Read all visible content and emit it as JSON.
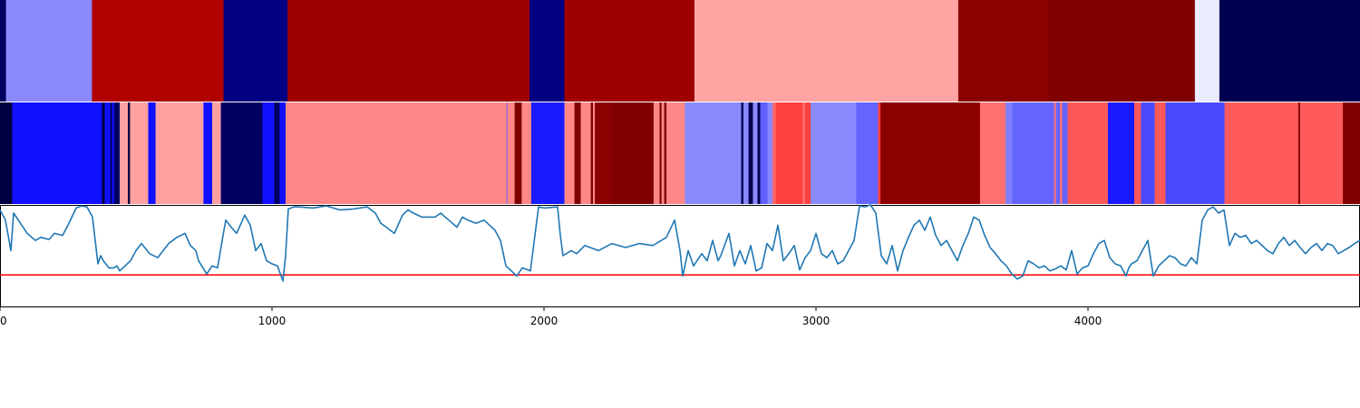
{
  "chart_data": [
    {
      "type": "heatmap",
      "panel": "top-segment-band",
      "xlim": [
        0,
        5000
      ],
      "segments": [
        {
          "start": 0,
          "end": 22,
          "color": "#000060"
        },
        {
          "start": 22,
          "end": 338,
          "color": "#8a8aff"
        },
        {
          "start": 338,
          "end": 822,
          "color": "#b10000"
        },
        {
          "start": 822,
          "end": 1057,
          "color": "#000080"
        },
        {
          "start": 1057,
          "end": 1947,
          "color": "#9f0000"
        },
        {
          "start": 1947,
          "end": 2075,
          "color": "#000080"
        },
        {
          "start": 2075,
          "end": 2553,
          "color": "#9f0000"
        },
        {
          "start": 2553,
          "end": 3523,
          "color": "#ffa3a3"
        },
        {
          "start": 3523,
          "end": 3853,
          "color": "#8b0000"
        },
        {
          "start": 3853,
          "end": 4393,
          "color": "#800000"
        },
        {
          "start": 4393,
          "end": 4483,
          "color": "#ececff"
        },
        {
          "start": 4483,
          "end": 5000,
          "color": "#000050"
        }
      ]
    },
    {
      "type": "heatmap",
      "panel": "middle-segment-band",
      "xlim": [
        0,
        5000
      ],
      "segments": [
        {
          "start": 0,
          "end": 45,
          "color": "#000040"
        },
        {
          "start": 45,
          "end": 375,
          "color": "#1010ff"
        },
        {
          "start": 375,
          "end": 385,
          "color": "#000040"
        },
        {
          "start": 385,
          "end": 405,
          "color": "#1010ff"
        },
        {
          "start": 405,
          "end": 412,
          "color": "#000060"
        },
        {
          "start": 412,
          "end": 420,
          "color": "#1010ff"
        },
        {
          "start": 420,
          "end": 440,
          "color": "#000060"
        },
        {
          "start": 440,
          "end": 470,
          "color": "#ffa0a0"
        },
        {
          "start": 470,
          "end": 478,
          "color": "#000040"
        },
        {
          "start": 478,
          "end": 545,
          "color": "#ffa0a0"
        },
        {
          "start": 545,
          "end": 572,
          "color": "#1010ff"
        },
        {
          "start": 572,
          "end": 748,
          "color": "#ffa0a0"
        },
        {
          "start": 748,
          "end": 780,
          "color": "#1010ff"
        },
        {
          "start": 780,
          "end": 812,
          "color": "#ffa0a0"
        },
        {
          "start": 812,
          "end": 965,
          "color": "#000060"
        },
        {
          "start": 965,
          "end": 1008,
          "color": "#1010ff"
        },
        {
          "start": 1008,
          "end": 1028,
          "color": "#000060"
        },
        {
          "start": 1028,
          "end": 1050,
          "color": "#1010ff"
        },
        {
          "start": 1050,
          "end": 1862,
          "color": "#ff8787"
        },
        {
          "start": 1862,
          "end": 1865,
          "color": "#6060ff"
        },
        {
          "start": 1865,
          "end": 1892,
          "color": "#ff8787"
        },
        {
          "start": 1892,
          "end": 1918,
          "color": "#800000"
        },
        {
          "start": 1918,
          "end": 1953,
          "color": "#ff8787"
        },
        {
          "start": 1953,
          "end": 2075,
          "color": "#1a1aff"
        },
        {
          "start": 2075,
          "end": 2112,
          "color": "#ff8787"
        },
        {
          "start": 2112,
          "end": 2135,
          "color": "#800000"
        },
        {
          "start": 2135,
          "end": 2172,
          "color": "#ff8787"
        },
        {
          "start": 2172,
          "end": 2180,
          "color": "#800000"
        },
        {
          "start": 2180,
          "end": 2187,
          "color": "#ff8787"
        },
        {
          "start": 2187,
          "end": 2250,
          "color": "#8b0000"
        },
        {
          "start": 2250,
          "end": 2403,
          "color": "#800000"
        },
        {
          "start": 2403,
          "end": 2425,
          "color": "#ff8787"
        },
        {
          "start": 2425,
          "end": 2432,
          "color": "#800000"
        },
        {
          "start": 2432,
          "end": 2442,
          "color": "#ff8787"
        },
        {
          "start": 2442,
          "end": 2450,
          "color": "#800000"
        },
        {
          "start": 2450,
          "end": 2518,
          "color": "#ff8787"
        },
        {
          "start": 2518,
          "end": 2725,
          "color": "#8a8aff"
        },
        {
          "start": 2725,
          "end": 2733,
          "color": "#000050"
        },
        {
          "start": 2733,
          "end": 2752,
          "color": "#8a8aff"
        },
        {
          "start": 2752,
          "end": 2768,
          "color": "#000050"
        },
        {
          "start": 2768,
          "end": 2785,
          "color": "#8a8aff"
        },
        {
          "start": 2785,
          "end": 2795,
          "color": "#000050"
        },
        {
          "start": 2795,
          "end": 2822,
          "color": "#6060ff"
        },
        {
          "start": 2822,
          "end": 2840,
          "color": "#8a8aff"
        },
        {
          "start": 2840,
          "end": 2852,
          "color": "#ff6a6a"
        },
        {
          "start": 2852,
          "end": 2950,
          "color": "#ff4040"
        },
        {
          "start": 2950,
          "end": 2960,
          "color": "#ff6a6a"
        },
        {
          "start": 2960,
          "end": 2980,
          "color": "#ff4040"
        },
        {
          "start": 2980,
          "end": 3148,
          "color": "#8a8aff"
        },
        {
          "start": 3148,
          "end": 3228,
          "color": "#6464ff"
        },
        {
          "start": 3228,
          "end": 3237,
          "color": "#ff4040"
        },
        {
          "start": 3237,
          "end": 3603,
          "color": "#8b0000"
        },
        {
          "start": 3603,
          "end": 3697,
          "color": "#ff7070"
        },
        {
          "start": 3697,
          "end": 3722,
          "color": "#8080ff"
        },
        {
          "start": 3722,
          "end": 3875,
          "color": "#6464ff"
        },
        {
          "start": 3875,
          "end": 3882,
          "color": "#ff7070"
        },
        {
          "start": 3882,
          "end": 3897,
          "color": "#6464ff"
        },
        {
          "start": 3897,
          "end": 3905,
          "color": "#ff7070"
        },
        {
          "start": 3905,
          "end": 3925,
          "color": "#6464ff"
        },
        {
          "start": 3925,
          "end": 4073,
          "color": "#ff5858"
        },
        {
          "start": 4073,
          "end": 4170,
          "color": "#1a1aff"
        },
        {
          "start": 4170,
          "end": 4195,
          "color": "#ff5858"
        },
        {
          "start": 4195,
          "end": 4245,
          "color": "#4a4aff"
        },
        {
          "start": 4245,
          "end": 4285,
          "color": "#ff5858"
        },
        {
          "start": 4285,
          "end": 4295,
          "color": "#4a4aff"
        },
        {
          "start": 4295,
          "end": 4502,
          "color": "#4a4aff"
        },
        {
          "start": 4502,
          "end": 4773,
          "color": "#ff5a5a"
        },
        {
          "start": 4773,
          "end": 4780,
          "color": "#8b0000"
        },
        {
          "start": 4780,
          "end": 4937,
          "color": "#ff5a5a"
        },
        {
          "start": 4937,
          "end": 5000,
          "color": "#800000"
        }
      ]
    },
    {
      "type": "line",
      "panel": "signal-plot",
      "xlim": [
        0,
        5000
      ],
      "ylim": [
        0,
        1
      ],
      "xticks": [
        0,
        1000,
        2000,
        3000,
        4000
      ],
      "xtick_labels": [
        "0",
        "1000",
        "2000",
        "3000",
        "4000"
      ],
      "line_color": "#1f77b4",
      "threshold": {
        "value": 0.31,
        "color": "#ff0000"
      },
      "x": [
        0,
        20,
        40,
        50,
        80,
        100,
        130,
        150,
        180,
        200,
        230,
        250,
        280,
        300,
        320,
        340,
        360,
        370,
        380,
        400,
        420,
        430,
        440,
        460,
        480,
        500,
        520,
        550,
        580,
        600,
        620,
        650,
        680,
        700,
        720,
        730,
        760,
        780,
        800,
        820,
        830,
        850,
        870,
        900,
        920,
        940,
        960,
        980,
        1000,
        1020,
        1040,
        1050,
        1060,
        1080,
        1100,
        1150,
        1200,
        1250,
        1300,
        1350,
        1380,
        1400,
        1420,
        1450,
        1480,
        1500,
        1520,
        1550,
        1600,
        1620,
        1650,
        1680,
        1700,
        1720,
        1750,
        1780,
        1800,
        1820,
        1840,
        1860,
        1880,
        1900,
        1920,
        1950,
        1980,
        2000,
        2050,
        2060,
        2070,
        2100,
        2120,
        2150,
        2200,
        2250,
        2300,
        2350,
        2400,
        2450,
        2480,
        2500,
        2510,
        2530,
        2550,
        2580,
        2600,
        2620,
        2640,
        2650,
        2680,
        2700,
        2720,
        2740,
        2760,
        2780,
        2800,
        2820,
        2840,
        2860,
        2880,
        2900,
        2920,
        2940,
        2960,
        2980,
        3000,
        3020,
        3040,
        3060,
        3080,
        3100,
        3120,
        3140,
        3160,
        3180,
        3200,
        3220,
        3240,
        3260,
        3280,
        3300,
        3320,
        3340,
        3360,
        3380,
        3400,
        3420,
        3440,
        3460,
        3480,
        3500,
        3520,
        3540,
        3560,
        3580,
        3600,
        3620,
        3640,
        3660,
        3680,
        3700,
        3720,
        3740,
        3760,
        3780,
        3800,
        3820,
        3840,
        3860,
        3880,
        3900,
        3920,
        3940,
        3960,
        3980,
        4000,
        4020,
        4040,
        4060,
        4080,
        4100,
        4120,
        4140,
        4150,
        4160,
        4180,
        4200,
        4220,
        4240,
        4260,
        4280,
        4300,
        4320,
        4340,
        4360,
        4380,
        4400,
        4420,
        4440,
        4460,
        4480,
        4500,
        4520,
        4540,
        4560,
        4580,
        4600,
        4620,
        4640,
        4660,
        4680,
        4700,
        4720,
        4740,
        4760,
        4780,
        4800,
        4820,
        4840,
        4860,
        4880,
        4900,
        4920,
        4940,
        4960,
        4980,
        5000
      ],
      "y": [
        0.95,
        0.85,
        0.55,
        0.92,
        0.8,
        0.72,
        0.65,
        0.68,
        0.66,
        0.72,
        0.7,
        0.8,
        0.97,
        0.99,
        0.98,
        0.88,
        0.42,
        0.5,
        0.45,
        0.38,
        0.38,
        0.4,
        0.35,
        0.4,
        0.45,
        0.55,
        0.62,
        0.52,
        0.48,
        0.55,
        0.62,
        0.68,
        0.72,
        0.6,
        0.55,
        0.45,
        0.32,
        0.4,
        0.38,
        0.7,
        0.85,
        0.78,
        0.72,
        0.9,
        0.8,
        0.55,
        0.62,
        0.45,
        0.42,
        0.4,
        0.25,
        0.5,
        0.96,
        0.98,
        0.98,
        0.97,
        0.99,
        0.95,
        0.96,
        0.98,
        0.92,
        0.82,
        0.78,
        0.72,
        0.9,
        0.95,
        0.92,
        0.88,
        0.88,
        0.92,
        0.85,
        0.78,
        0.88,
        0.85,
        0.82,
        0.85,
        0.8,
        0.75,
        0.65,
        0.4,
        0.35,
        0.3,
        0.38,
        0.35,
        0.98,
        0.97,
        0.98,
        0.7,
        0.5,
        0.55,
        0.52,
        0.6,
        0.55,
        0.62,
        0.58,
        0.62,
        0.6,
        0.68,
        0.85,
        0.55,
        0.3,
        0.55,
        0.4,
        0.52,
        0.45,
        0.65,
        0.45,
        0.5,
        0.72,
        0.4,
        0.55,
        0.42,
        0.6,
        0.35,
        0.38,
        0.62,
        0.55,
        0.8,
        0.45,
        0.52,
        0.6,
        0.36,
        0.48,
        0.55,
        0.72,
        0.52,
        0.48,
        0.55,
        0.42,
        0.45,
        0.55,
        0.65,
        0.99,
        0.98,
        1.0,
        0.92,
        0.5,
        0.42,
        0.6,
        0.35,
        0.55,
        0.68,
        0.8,
        0.85,
        0.75,
        0.88,
        0.7,
        0.6,
        0.65,
        0.55,
        0.45,
        0.6,
        0.72,
        0.88,
        0.85,
        0.7,
        0.58,
        0.52,
        0.45,
        0.4,
        0.32,
        0.27,
        0.3,
        0.45,
        0.42,
        0.38,
        0.4,
        0.35,
        0.37,
        0.4,
        0.36,
        0.55,
        0.32,
        0.38,
        0.4,
        0.52,
        0.62,
        0.65,
        0.48,
        0.42,
        0.4,
        0.3,
        0.38,
        0.42,
        0.45,
        0.55,
        0.65,
        0.3,
        0.4,
        0.45,
        0.5,
        0.48,
        0.42,
        0.4,
        0.48,
        0.42,
        0.85,
        0.95,
        0.98,
        0.92,
        0.95,
        0.6,
        0.72,
        0.68,
        0.7,
        0.62,
        0.65,
        0.6,
        0.55,
        0.52,
        0.62,
        0.68,
        0.6,
        0.65,
        0.58,
        0.52,
        0.58,
        0.62,
        0.55,
        0.62,
        0.6,
        0.52,
        0.55,
        0.58,
        0.62,
        0.65
      ]
    }
  ]
}
